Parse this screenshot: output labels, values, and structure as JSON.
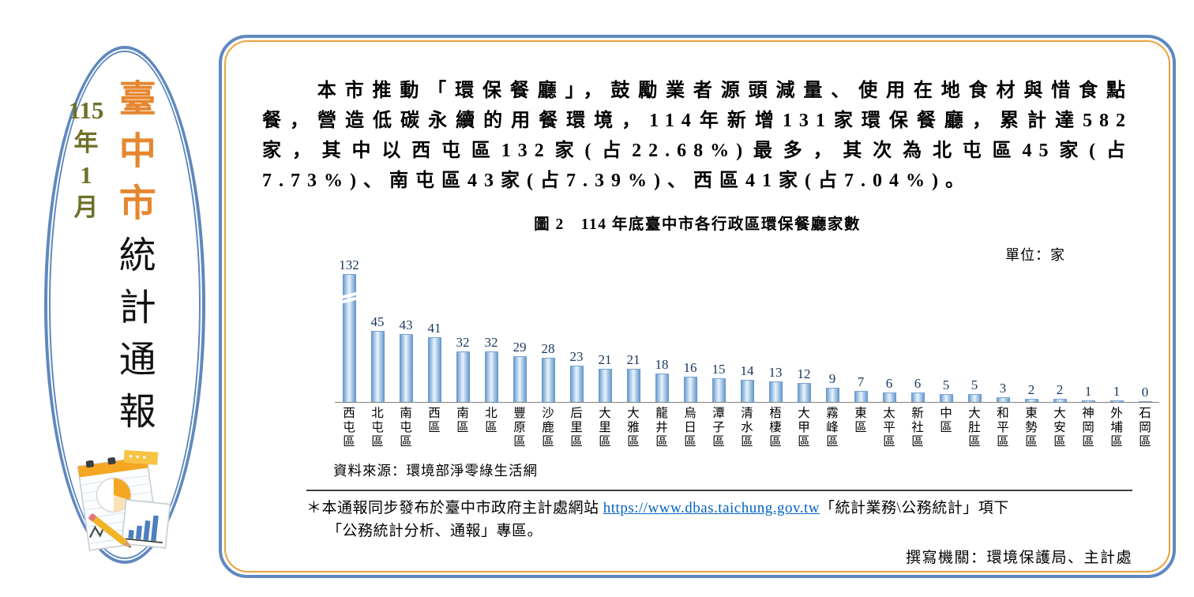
{
  "masthead": {
    "issue": {
      "lines": [
        "115",
        "年",
        "1",
        "月"
      ]
    },
    "title_part1": "臺中市",
    "title_part2": "統計通報"
  },
  "bulletin": {
    "paragraph": "　　本市推動「環保餐廳」，鼓勵業者源頭減量、使用在地食材與惜食點餐，營造低碳永續的用餐環境，114年新增131家環保餐廳，累計達582家，其中以西屯區132家(占22.68%)最多，其次為北屯區45家(占7.73%)、南屯區43家(占7.39%)、西區41家(占7.04%)。",
    "source": "資料來源：環境部淨零綠生活網",
    "footnote": {
      "prefix": "＊本通報同步發布於臺中市政府主計處網站 ",
      "link": "https://www.dbas.taichung.gov.tw",
      "suffix": "「統計業務\\公務統計」項下",
      "line2": "「公務統計分析、通報」專區。"
    },
    "author": "撰寫機關：環境保護局、主計處"
  },
  "chart_data": {
    "type": "bar",
    "title": "圖 2　114 年底臺中市各行政區環保餐廳家數",
    "unit_label": "單位：家",
    "categories": [
      "西屯區",
      "北屯區",
      "南屯區",
      "西區",
      "南區",
      "北區",
      "豐原區",
      "沙鹿區",
      "后里區",
      "大里區",
      "大雅區",
      "龍井區",
      "烏日區",
      "潭子區",
      "清水區",
      "梧棲區",
      "大甲區",
      "霧峰區",
      "東區",
      "太平區",
      "新社區",
      "中區",
      "大肚區",
      "和平區",
      "東勢區",
      "大安區",
      "神岡區",
      "外埔區",
      "石岡區"
    ],
    "values": [
      132,
      45,
      43,
      41,
      32,
      32,
      29,
      28,
      23,
      21,
      21,
      18,
      16,
      15,
      14,
      13,
      12,
      9,
      7,
      6,
      6,
      5,
      5,
      3,
      2,
      2,
      1,
      1,
      0
    ],
    "value_labels_shown": true,
    "axis_break_on_first_bar": true,
    "y_axis_visible": false,
    "bar_color": "#6d9dd1",
    "grid": false,
    "legend": "none"
  }
}
